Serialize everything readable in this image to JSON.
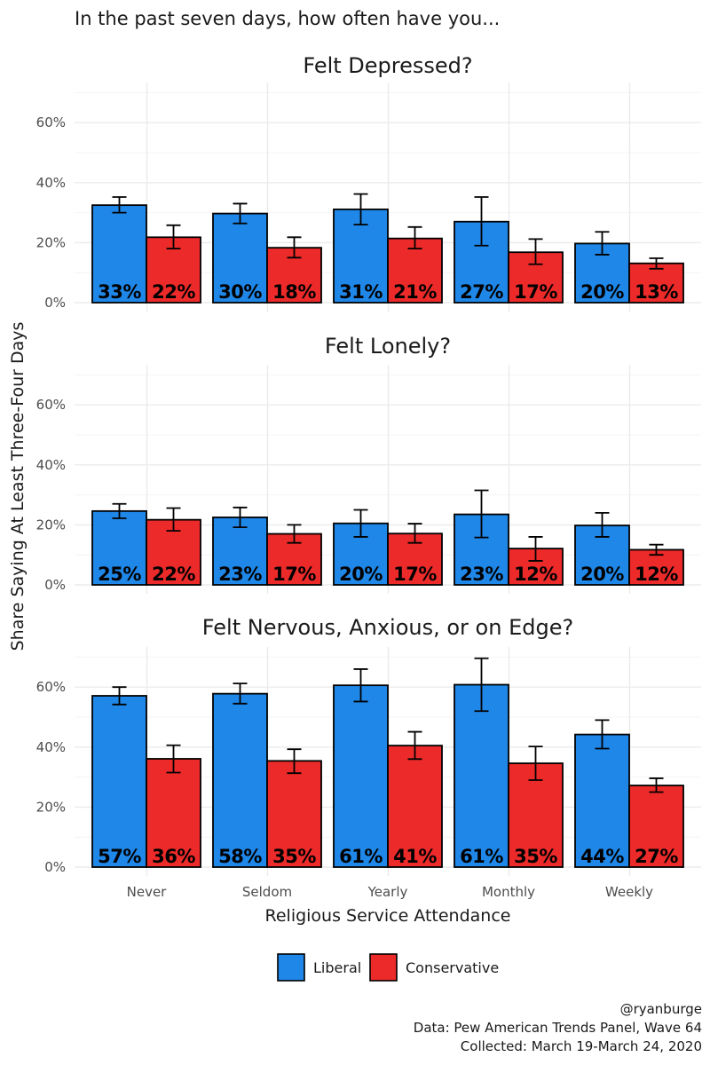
{
  "chart_data": {
    "type": "bar",
    "title": "In the past seven days, how often have you...",
    "xlabel": "Religious Service Attendance",
    "ylabel": "Share Saying At Least Three-Four Days",
    "categories": [
      "Never",
      "Seldom",
      "Yearly",
      "Monthly",
      "Weekly"
    ],
    "yticks": [
      "0%",
      "20%",
      "40%",
      "60%"
    ],
    "ylim": [
      0,
      0.72
    ],
    "legend": {
      "position": "bottom",
      "items": [
        {
          "name": "Liberal",
          "color": "#1f87e8"
        },
        {
          "name": "Conservative",
          "color": "#ed2a2a"
        }
      ]
    },
    "panels": [
      {
        "title": "Felt Depressed?",
        "series": [
          {
            "name": "Liberal",
            "values": [
              0.325,
              0.297,
              0.311,
              0.27,
              0.197
            ],
            "error_low": [
              0.3,
              0.264,
              0.26,
              0.19,
              0.16
            ],
            "error_high": [
              0.352,
              0.33,
              0.362,
              0.352,
              0.236
            ],
            "labels": [
              "33%",
              "30%",
              "31%",
              "27%",
              "20%"
            ]
          },
          {
            "name": "Conservative",
            "values": [
              0.218,
              0.183,
              0.214,
              0.168,
              0.131
            ],
            "error_low": [
              0.18,
              0.15,
              0.18,
              0.128,
              0.113
            ],
            "error_high": [
              0.258,
              0.218,
              0.252,
              0.212,
              0.148
            ],
            "labels": [
              "22%",
              "18%",
              "21%",
              "17%",
              "13%"
            ]
          }
        ]
      },
      {
        "title": "Felt Lonely?",
        "series": [
          {
            "name": "Liberal",
            "values": [
              0.246,
              0.225,
              0.205,
              0.235,
              0.198
            ],
            "error_low": [
              0.222,
              0.192,
              0.16,
              0.158,
              0.16
            ],
            "error_high": [
              0.27,
              0.258,
              0.25,
              0.315,
              0.24
            ],
            "labels": [
              "25%",
              "23%",
              "20%",
              "23%",
              "20%"
            ]
          },
          {
            "name": "Conservative",
            "values": [
              0.217,
              0.17,
              0.171,
              0.121,
              0.117
            ],
            "error_low": [
              0.18,
              0.14,
              0.14,
              0.08,
              0.1
            ],
            "error_high": [
              0.256,
              0.2,
              0.204,
              0.16,
              0.134
            ],
            "labels": [
              "22%",
              "17%",
              "17%",
              "12%",
              "12%"
            ]
          }
        ]
      },
      {
        "title": "Felt Nervous, Anxious, or on Edge?",
        "series": [
          {
            "name": "Liberal",
            "values": [
              0.571,
              0.578,
              0.606,
              0.608,
              0.442
            ],
            "error_low": [
              0.542,
              0.545,
              0.552,
              0.52,
              0.395
            ],
            "error_high": [
              0.6,
              0.612,
              0.66,
              0.696,
              0.49
            ],
            "labels": [
              "57%",
              "58%",
              "61%",
              "61%",
              "44%"
            ]
          },
          {
            "name": "Conservative",
            "values": [
              0.361,
              0.354,
              0.405,
              0.346,
              0.272
            ],
            "error_low": [
              0.315,
              0.313,
              0.36,
              0.29,
              0.25
            ],
            "error_high": [
              0.406,
              0.393,
              0.451,
              0.402,
              0.296
            ],
            "labels": [
              "36%",
              "35%",
              "41%",
              "35%",
              "27%"
            ]
          }
        ]
      }
    ],
    "caption": [
      "@ryanburge",
      "Data: Pew American Trends Panel, Wave 64",
      "Collected: March 19-March 24, 2020"
    ]
  }
}
